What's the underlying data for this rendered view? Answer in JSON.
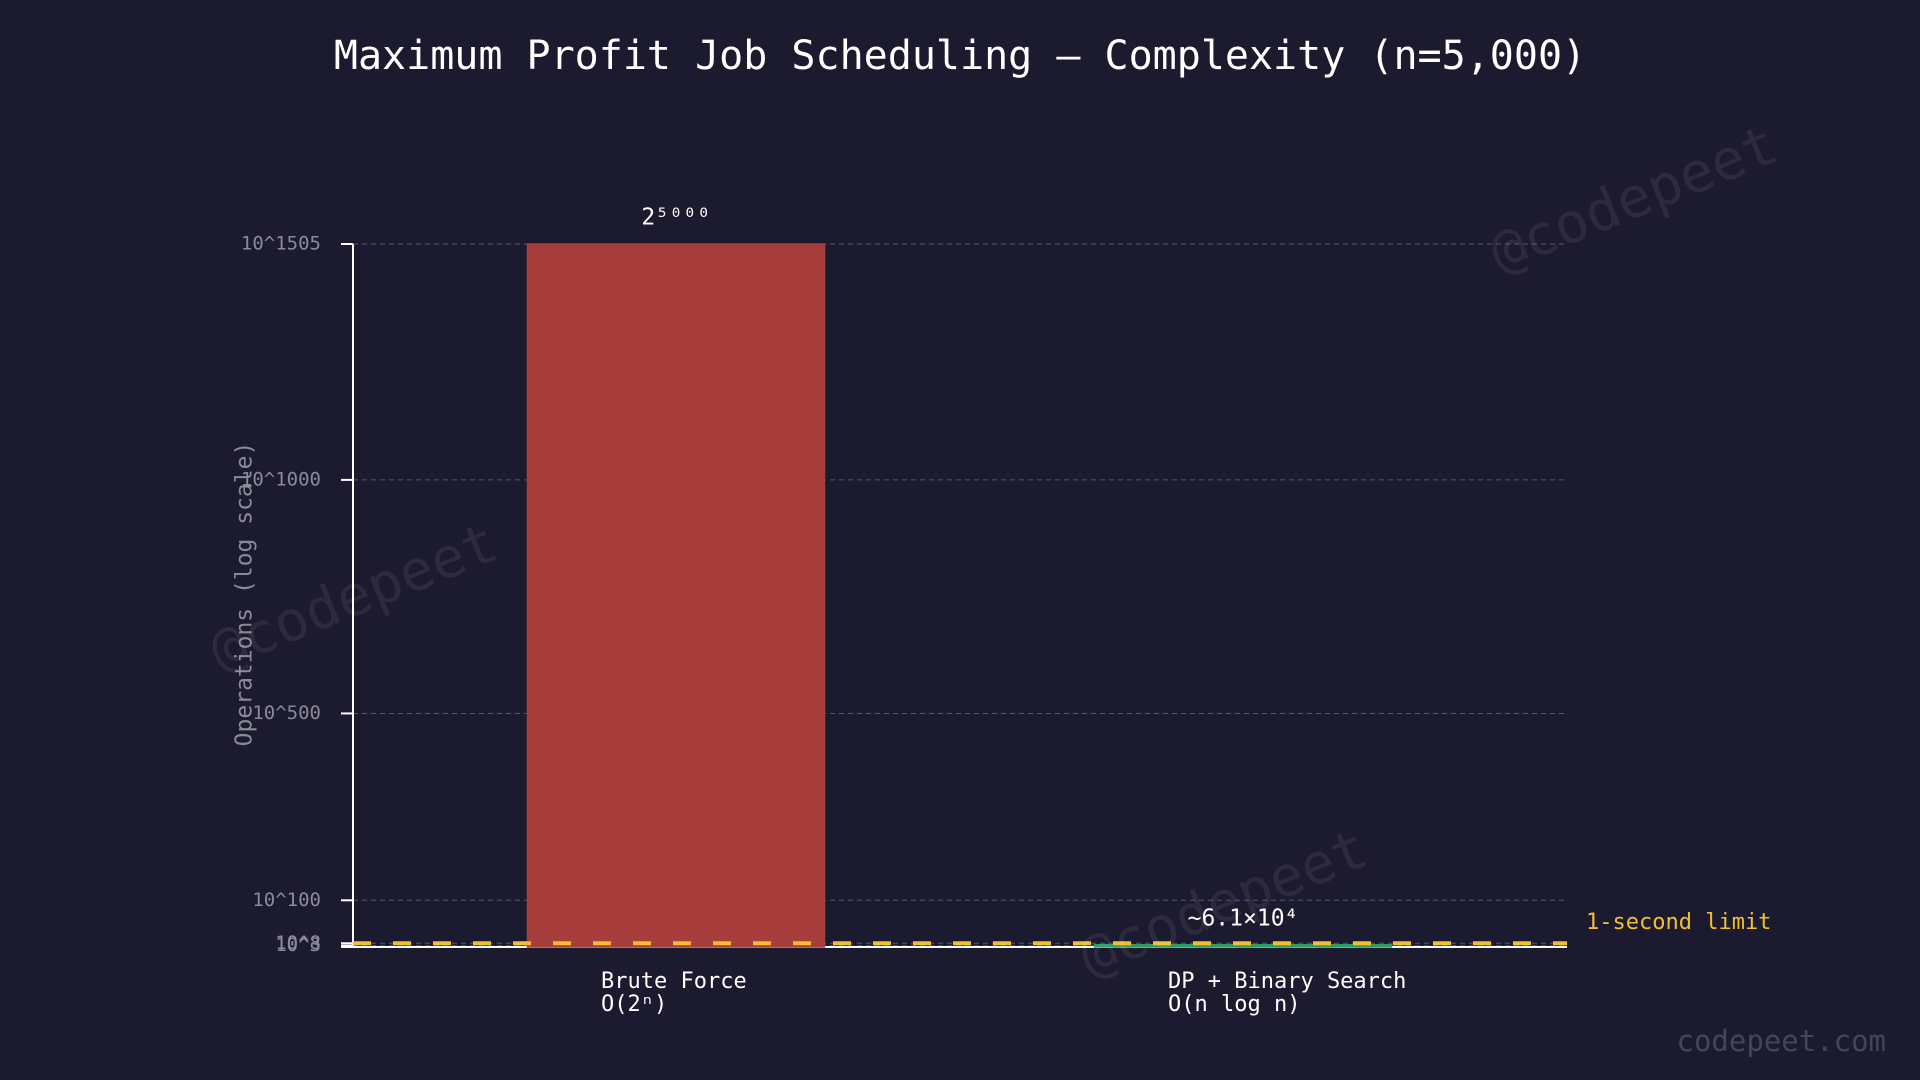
{
  "chart_data": {
    "type": "bar",
    "title": "Maximum Profit Job Scheduling — Complexity (n=5,000)",
    "y_label": "Operations (log scale)",
    "categories": [
      "Brute Force",
      "DP + Binary Search"
    ],
    "complexities": [
      "O(2ⁿ)",
      "O(n log n)"
    ],
    "values": [
      1505,
      4.785
    ],
    "value_labels": [
      "2⁵⁰⁰⁰",
      "~6.1×10⁴"
    ],
    "colors": [
      "#a83e3c",
      "#2e9c61"
    ],
    "ylim": [
      0,
      1505
    ],
    "yticks": [
      {
        "value": 3,
        "label": "10^3"
      },
      {
        "value": 8,
        "label": "10^8"
      },
      {
        "value": 100,
        "label": "10^100"
      },
      {
        "value": 500,
        "label": "10^500"
      },
      {
        "value": 1000,
        "label": "10^1000"
      },
      {
        "value": 1505,
        "label": "10^1505"
      }
    ],
    "grid": true,
    "limit": {
      "value": 8,
      "label": "1-second limit",
      "color": "#f0c030"
    },
    "watermark": "@codepeet",
    "footer": "codepeet.com"
  }
}
